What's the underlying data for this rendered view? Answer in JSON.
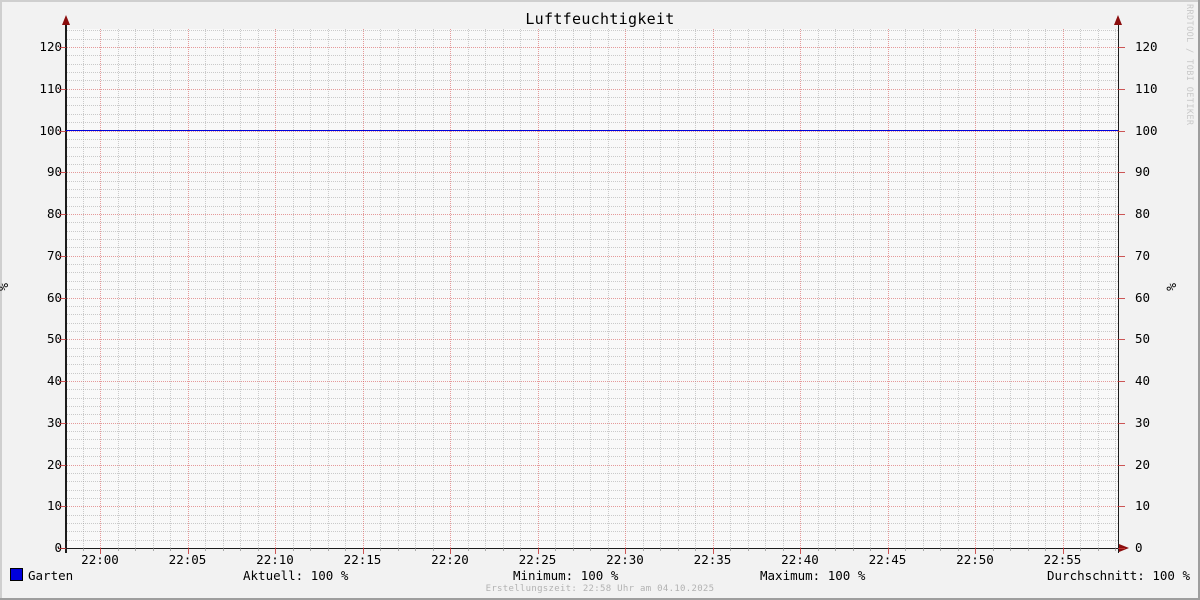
{
  "title": "Luftfeuchtigkeit",
  "watermark": "RRDTOOL / TOBI OETIKER",
  "footer": "Erstellungszeit: 22:58 Uhr am 04.10.2025",
  "legend": {
    "series_label": "Garten",
    "series_color": "#0000dd",
    "stats": [
      {
        "text": "Aktuell: 100 %"
      },
      {
        "text": "Minimum: 100 %"
      },
      {
        "text": "Maximum: 100 %"
      },
      {
        "text": "Durchschnitt: 100 %"
      }
    ]
  },
  "chart_data": {
    "type": "line",
    "title": "Luftfeuchtigkeit",
    "xlabel": "",
    "ylabel": "%",
    "ylim": [
      0,
      124
    ],
    "y_ticks": [
      0,
      10,
      20,
      30,
      40,
      50,
      60,
      70,
      80,
      90,
      100,
      110,
      120
    ],
    "y_minor_step": 2,
    "x_ticks": [
      "22:00",
      "22:05",
      "22:10",
      "22:15",
      "22:20",
      "22:25",
      "22:30",
      "22:35",
      "22:40",
      "22:45",
      "22:50",
      "22:55"
    ],
    "x_minor_step_minutes": 1,
    "x_major_step_minutes": 5,
    "x_range": [
      "21:58",
      "22:58"
    ],
    "grid": true,
    "legend_position": "bottom",
    "series": [
      {
        "name": "Garten",
        "color": "#0000dd",
        "shape": "constant-line",
        "value": 100
      }
    ],
    "stats": {
      "aktuell": "100 %",
      "minimum": "100 %",
      "maximum": "100 %",
      "durchschnitt": "100 %"
    }
  },
  "colors": {
    "background": "#f2f2f2",
    "canvas": "#f9f9f9",
    "major_grid": "#d64c4c",
    "minor_grid": "#909090",
    "axis": "#1c1c1c",
    "arrow": "#8b0d0d",
    "line": "#0000dd"
  }
}
